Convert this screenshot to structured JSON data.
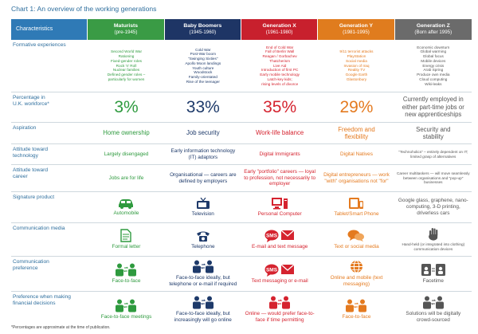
{
  "title": "Chart 1: An overview of the working generations",
  "header": {
    "characteristics": "Characteristics",
    "generations": [
      {
        "name": "Maturists",
        "years": "(pre-1945)",
        "color": "#3a9b45"
      },
      {
        "name": "Baby Boomers",
        "years": "(1945-1960)",
        "color": "#1e3565"
      },
      {
        "name": "Generation X",
        "years": "(1961-1980)",
        "color": "#c8202d"
      },
      {
        "name": "Generation Y",
        "years": "(1981-1995)",
        "color": "#e07c1e"
      },
      {
        "name": "Generation Z",
        "years": "(Born after 1995)",
        "color": "#6b6b6b"
      }
    ]
  },
  "rows": {
    "formative": {
      "label": "Formative experiences",
      "cells": [
        [
          "Second World War",
          "Rationing",
          "Fixed-gender roles",
          "Rock 'n' Roll",
          "Nuclear families",
          "Defined gender roles –",
          "particularly for women"
        ],
        [
          "Cold War",
          "Post-War boom",
          "\"Swinging Sixties\"",
          "Apollo Moon landings",
          "Youth culture",
          "Woodstock",
          "Family-orientated",
          "Rise of the teenager"
        ],
        [
          "End of Cold War",
          "Fall of Berlin Wall",
          "Reagan / Gorbachev",
          "Thatcherism",
          "Live Aid",
          "Introduction of first PC",
          "Early mobile technology",
          "Latch-key kids;",
          "rising levels of divorce"
        ],
        [
          "9/11 terrorist attacks",
          "PlayStation",
          "Social media",
          "Invasion of Iraq",
          "Reality TV",
          "Google Earth",
          "Glastonbury"
        ],
        [
          "Economic downturn",
          "Global warming",
          "Global focus",
          "Mobile devices",
          "Energy crisis",
          "Arab Spring",
          "Produce own media",
          "Cloud computing",
          "Wiki-leaks"
        ]
      ]
    },
    "percentage": {
      "label": [
        "Percentage in",
        "U.K. workforce*"
      ],
      "cells": [
        "3%",
        "33%",
        "35%",
        "29%",
        "Currently employed in either part-time jobs or new apprenticeships"
      ]
    },
    "aspiration": {
      "label": "Aspiration",
      "cells": [
        "Home ownership",
        "Job security",
        "Work-life balance",
        "Freedom and flexibility",
        "Security and stability"
      ]
    },
    "technology": {
      "label": [
        "Attitude toward",
        "technology"
      ],
      "cells": [
        "Largely disengaged",
        "Early information technology (IT) adaptors",
        "Digital Immigrants",
        "Digital Natives",
        "\"Technoholics\" – entirely dependent on IT; limited grasp of alternatives"
      ]
    },
    "career": {
      "label": [
        "Attitude toward",
        "career"
      ],
      "cells": [
        "Jobs are for life",
        "Organisational — careers are defined by employers",
        "Early \"portfolio\" careers — loyal to profession, not necessarily to employer",
        "Digital entrepreneurs — work \"with\" organisations not \"for\"",
        "Career multitaskers — will move seamlessly between organisations and \"pop-up\" businesses"
      ]
    },
    "product": {
      "label": "Signature product",
      "cells": [
        "Automobile",
        "Television",
        "Personal Computer",
        "Tablet/Smart Phone",
        "Google glass, graphene, nano-computing, 3-D printing, driverless cars"
      ],
      "icons": [
        "car-icon",
        "television-icon",
        "computer-icon",
        "tablet-phone-icon",
        ""
      ]
    },
    "media": {
      "label": "Communication media",
      "cells": [
        "Formal letter",
        "Telephone",
        "E-mail and text message",
        "Text or social media",
        "Hand-held (or integrated into clothing) communication devices"
      ],
      "icons": [
        "letter-icon",
        "telephone-icon",
        "sms-email-icon",
        "chat-icon",
        "hand-icon"
      ]
    },
    "comm_pref": {
      "label": [
        "Communication",
        "preference"
      ],
      "cells": [
        "Face-to-face",
        "Face-to-face ideally, but telephone or e-mail if required",
        "Text messaging or e-mail",
        "Online and mobile (text messaging)",
        "Facetime"
      ],
      "icons": [
        "people-icon",
        "people-icon",
        "sms-email-icon",
        "globe-icon",
        "facetime-icon"
      ]
    },
    "financial": {
      "label": [
        "Preference when making",
        "financial decisions"
      ],
      "cells": [
        "Face-to-face meetings",
        "Face-to-face ideally, but increasingly will go online",
        "Online — would prefer face-to-face if time permitting",
        "Face-to-face",
        "Solutions will be digitally crowd-sourced"
      ],
      "icons": [
        "people-icon",
        "people-icon",
        "people-icon",
        "people-icon",
        "people-icon"
      ]
    }
  },
  "footnote": "*Percentages are approximate at the time of publication.",
  "colors": {
    "label_blue": "#2f6f9e",
    "header_blue": "#2f7ab6"
  }
}
